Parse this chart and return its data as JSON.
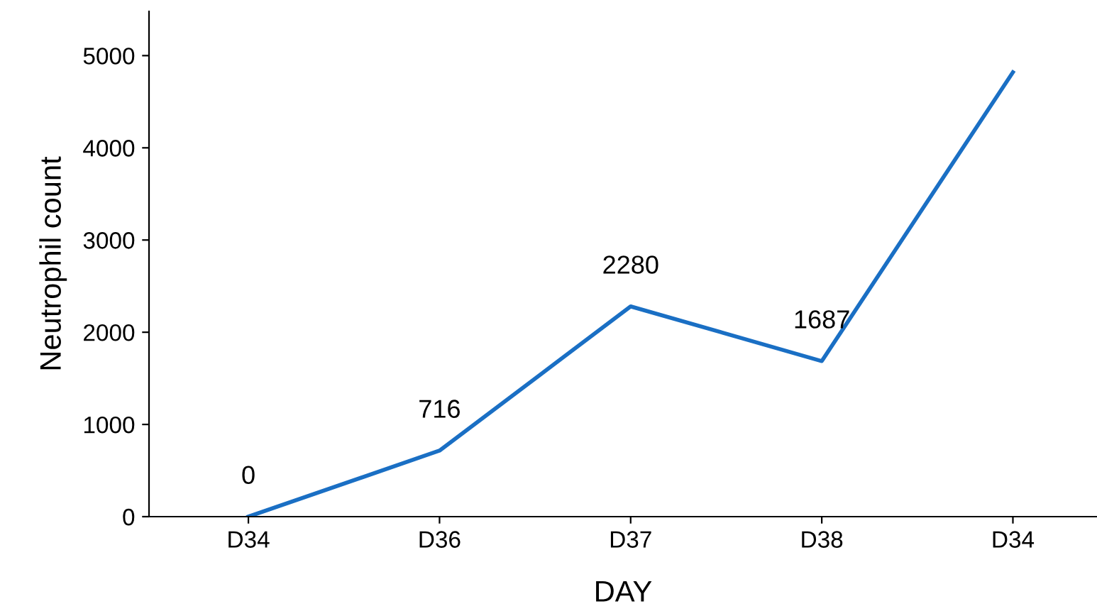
{
  "chart_data": {
    "type": "line",
    "xlabel": "DAY",
    "ylabel": "Neutrophil count",
    "categories": [
      "D34",
      "D36",
      "D37",
      "D38",
      "D34"
    ],
    "series": [
      {
        "color": "#1a6fc4",
        "values": [
          0,
          716,
          2280,
          1687,
          4820
        ],
        "value_labels": [
          "0",
          "716",
          "2280",
          "1687",
          null
        ]
      }
    ],
    "ylim": [
      0,
      5480
    ],
    "yticks": [
      0,
      1000,
      2000,
      3000,
      4000,
      5000
    ],
    "grid": false,
    "marker": "none",
    "line_style": "solid"
  }
}
